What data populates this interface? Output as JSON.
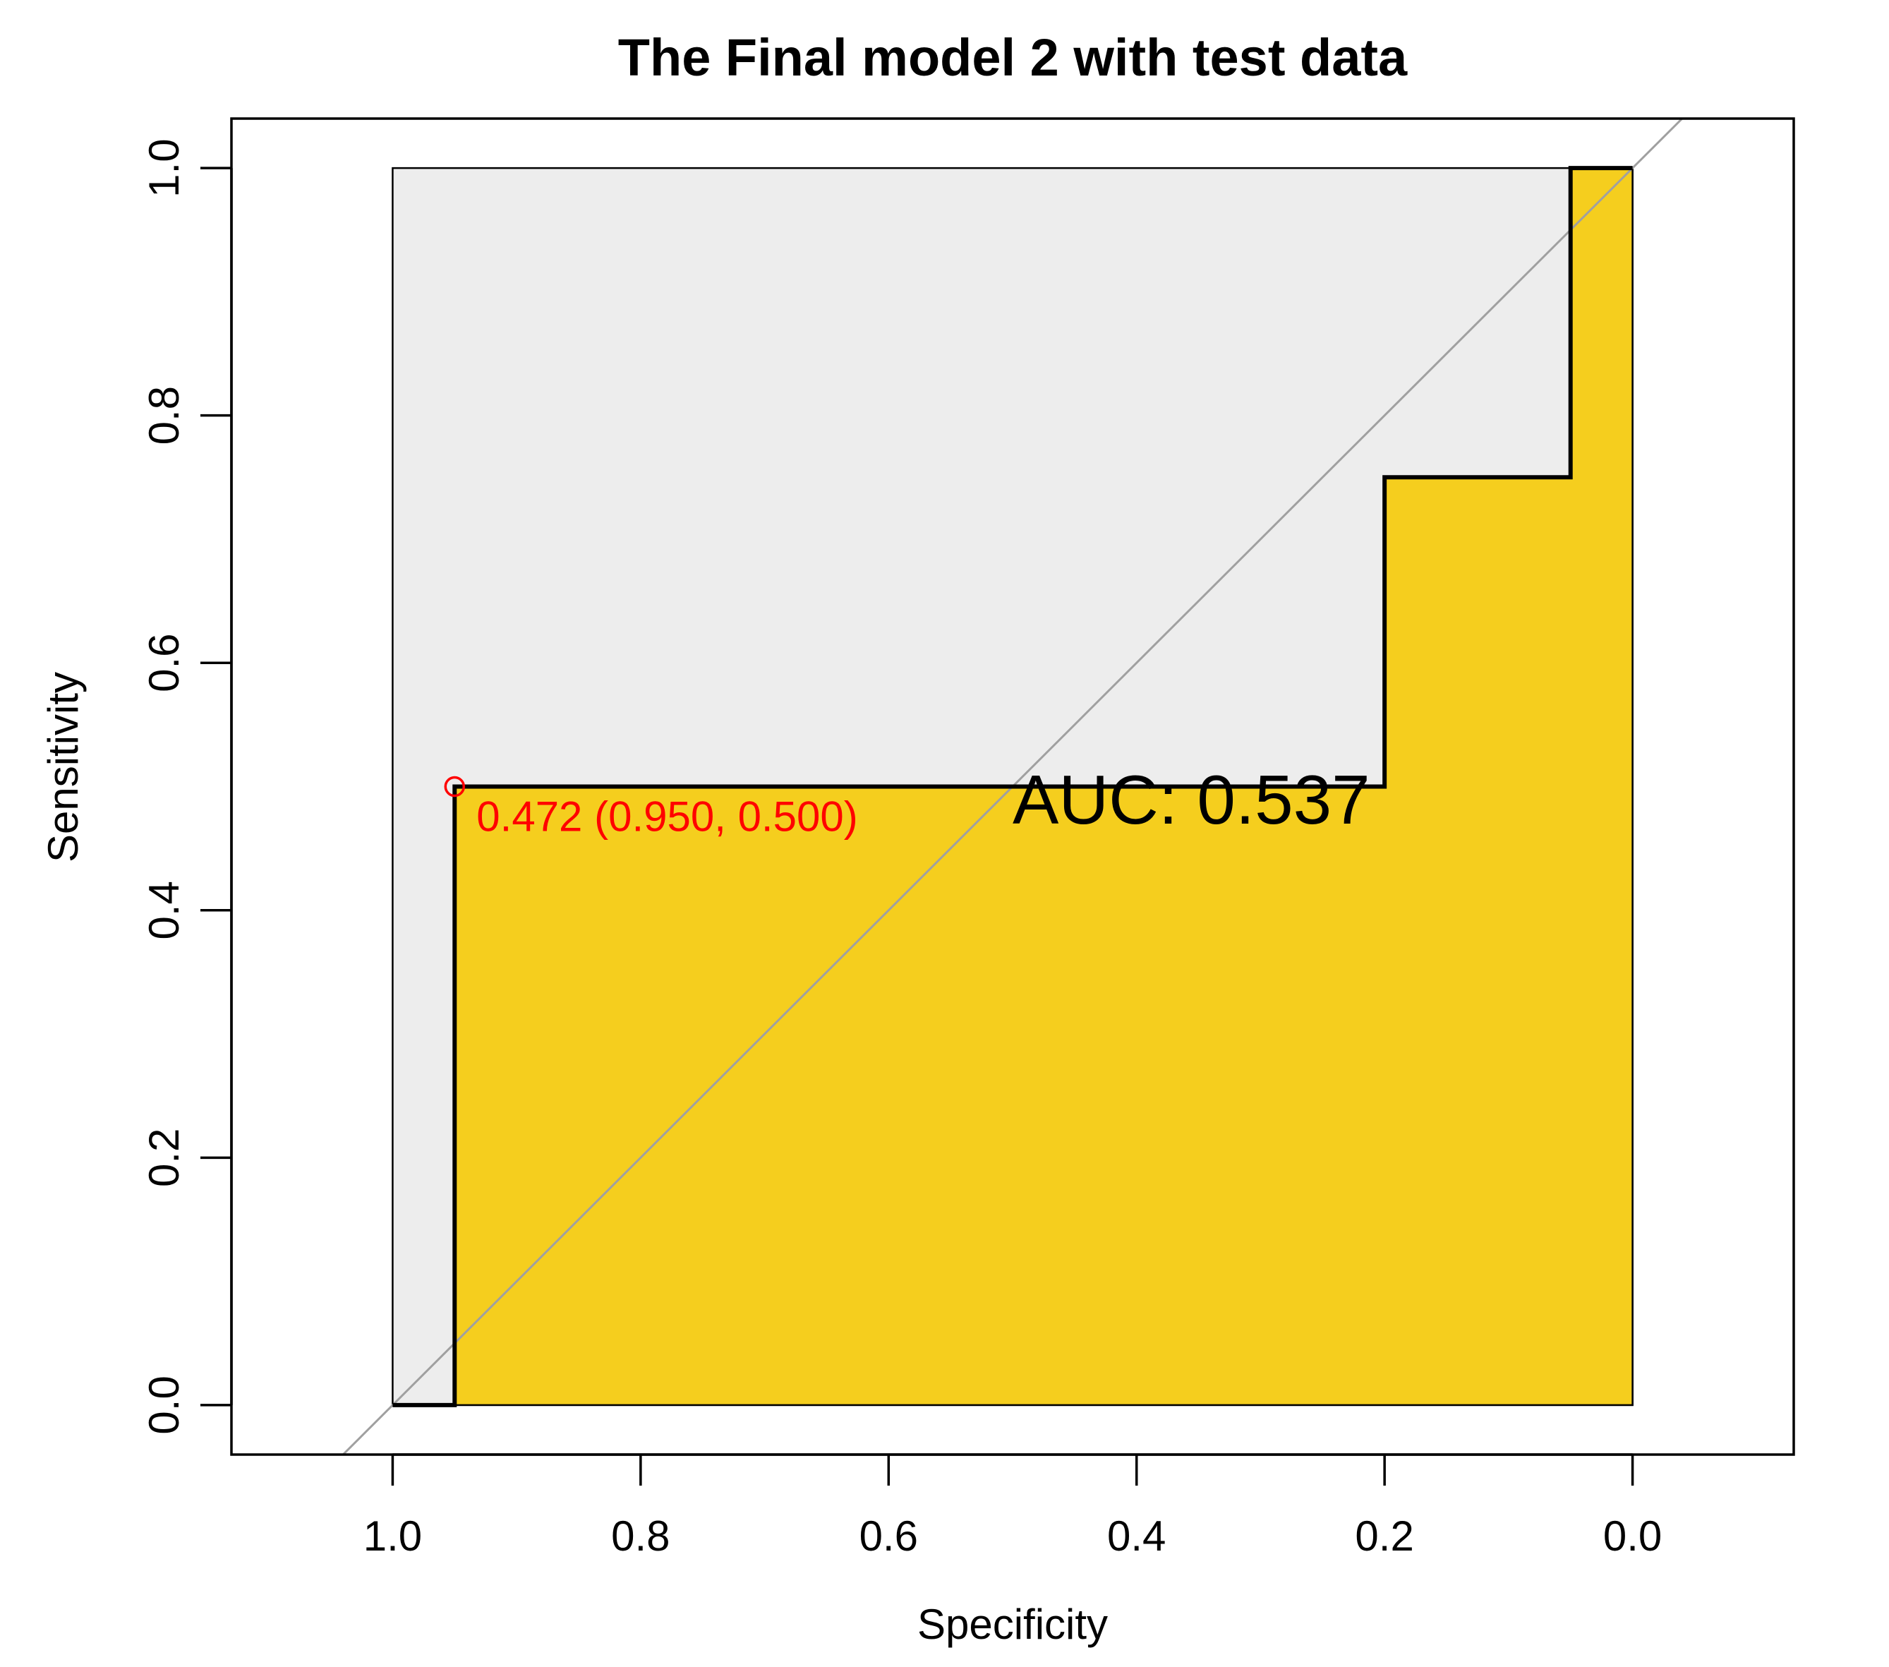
{
  "chart_data": {
    "type": "line",
    "title": "The Final model 2 with test data",
    "xlabel": "Specificity",
    "ylabel": "Sensitivity",
    "x_reversed": true,
    "xlim": [
      1.13,
      -0.13
    ],
    "ylim": [
      -0.04,
      1.04
    ],
    "x_ticks": [
      1.0,
      0.8,
      0.6,
      0.4,
      0.2,
      0.0
    ],
    "x_tick_labels": [
      "1.0",
      "0.8",
      "0.6",
      "0.4",
      "0.2",
      "0.0"
    ],
    "y_ticks": [
      0.0,
      0.2,
      0.4,
      0.6,
      0.8,
      1.0
    ],
    "y_tick_labels": [
      "0.0",
      "0.2",
      "0.4",
      "0.6",
      "0.8",
      "1.0"
    ],
    "grid": false,
    "series": [
      {
        "specificity": [
          1.0,
          0.95,
          0.95,
          0.2,
          0.2,
          0.05,
          0.05,
          0.0
        ],
        "sensitivity": [
          0.0,
          0.0,
          0.5,
          0.5,
          0.75,
          0.75,
          1.0,
          1.0
        ]
      }
    ],
    "auc_area_color": "#f5ce1e",
    "max_auc_area_color": "#ededed",
    "diagonal_color": "#a0a0a0",
    "best_threshold": {
      "specificity": 0.95,
      "sensitivity": 0.5,
      "label": "0.472 (0.950, 0.500)",
      "color": "#ff0000"
    },
    "annotations": [
      {
        "text": "AUC: 0.537",
        "x": 0.5,
        "y": 0.47
      }
    ]
  }
}
